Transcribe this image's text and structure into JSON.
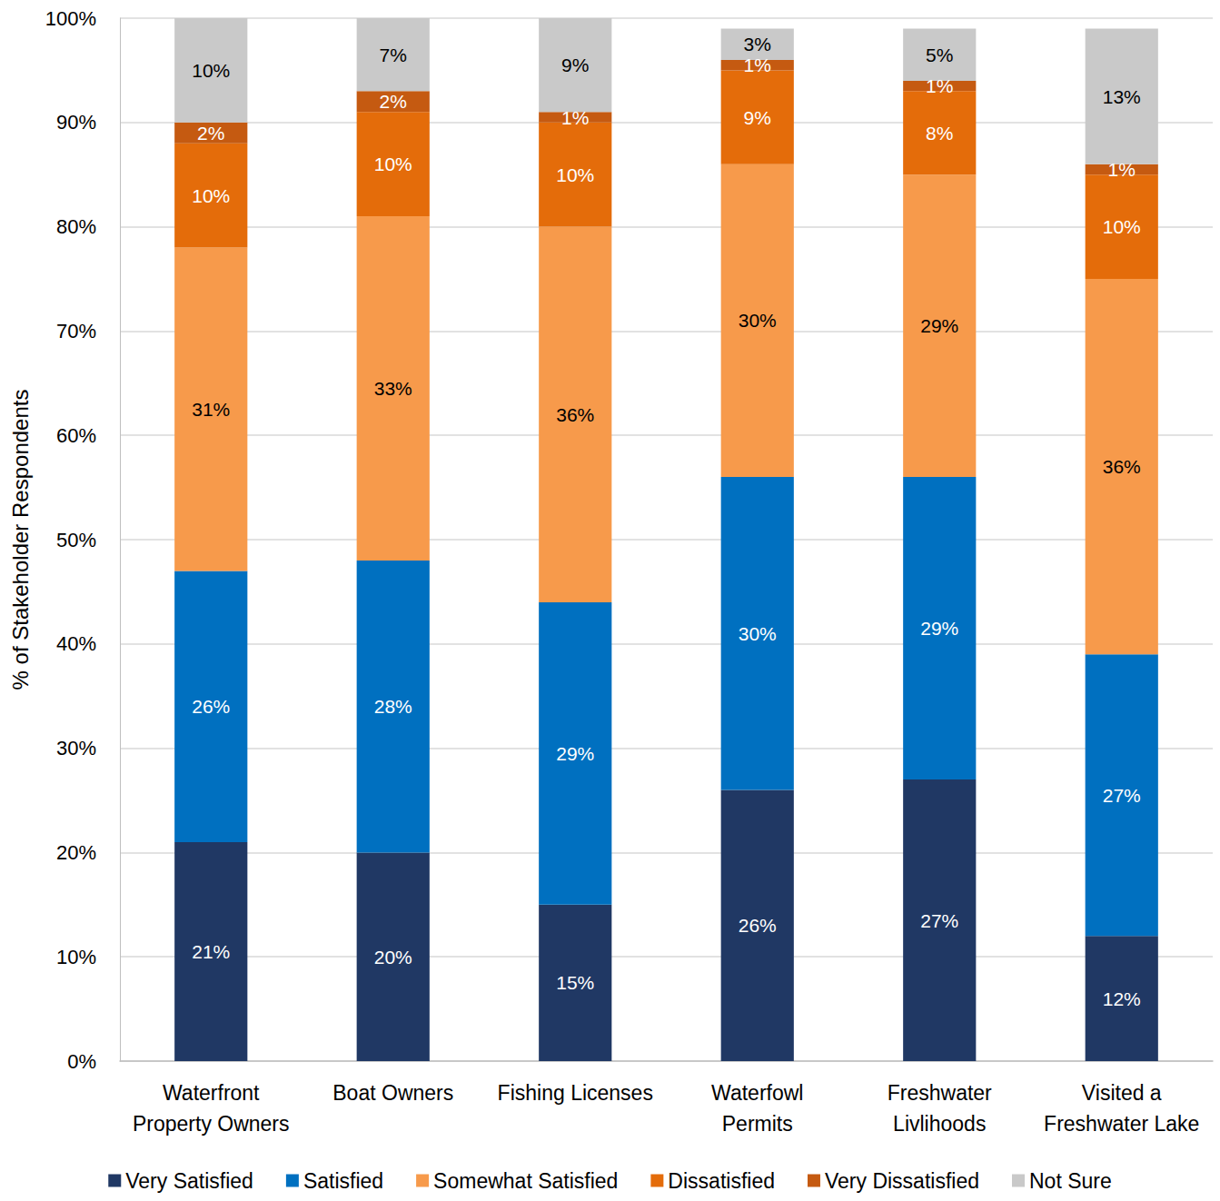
{
  "chart_data": {
    "type": "bar",
    "stacked": true,
    "data_labels": true,
    "grid": true,
    "legend": "bottom",
    "y_label": "% of Stakeholder Respondents",
    "categories": [
      "Waterfront\nProperty Owners",
      "Boat Owners",
      "Fishing Licenses",
      "Waterfowl\nPermits",
      "Freshwater\nLivlihoods",
      "Visited a\nFreshwater Lake"
    ],
    "ylim": [
      0,
      100
    ],
    "yticks": [
      {
        "value": 0,
        "label": "0%"
      },
      {
        "value": 10,
        "label": "10%"
      },
      {
        "value": 20,
        "label": "20%"
      },
      {
        "value": 30,
        "label": "30%"
      },
      {
        "value": 40,
        "label": "40%"
      },
      {
        "value": 50,
        "label": "50%"
      },
      {
        "value": 60,
        "label": "60%"
      },
      {
        "value": 70,
        "label": "70%"
      },
      {
        "value": 80,
        "label": "80%"
      },
      {
        "value": 90,
        "label": "90%"
      },
      {
        "value": 100,
        "label": "100%"
      }
    ],
    "series": [
      {
        "name": "Very Satisfied",
        "color": "#203864",
        "values": [
          21,
          20,
          15,
          26,
          27,
          12
        ],
        "value_labels": [
          "21%",
          "20%",
          "15%",
          "26%",
          "27%",
          "12%"
        ]
      },
      {
        "name": "Satisfied",
        "color": "#0070c0",
        "values": [
          26,
          28,
          29,
          30,
          29,
          27
        ],
        "value_labels": [
          "26%",
          "28%",
          "29%",
          "30%",
          "29%",
          "27%"
        ]
      },
      {
        "name": "Somewhat Satisfied",
        "color": "#f79a4b",
        "values": [
          31,
          33,
          36,
          30,
          29,
          36
        ],
        "value_labels": [
          "31%",
          "33%",
          "36%",
          "30%",
          "29%",
          "36%"
        ]
      },
      {
        "name": "Dissatisfied",
        "color": "#e46c0a",
        "values": [
          10,
          10,
          10,
          9,
          8,
          10
        ],
        "value_labels": [
          "10%",
          "10%",
          "10%",
          "9%",
          "8%",
          "10%"
        ]
      },
      {
        "name": "Very Dissatisfied",
        "color": "#c55a11",
        "values": [
          2,
          2,
          1,
          1,
          1,
          1
        ],
        "value_labels": [
          "2%",
          "2%",
          "1%",
          "1%",
          "1%",
          "1%"
        ]
      },
      {
        "name": "Not Sure",
        "color": "#c9c9c9",
        "values": [
          10,
          7,
          9,
          3,
          5,
          13
        ],
        "value_labels": [
          "10%",
          "7%",
          "9%",
          "3%",
          "5%",
          "13%"
        ]
      }
    ]
  }
}
